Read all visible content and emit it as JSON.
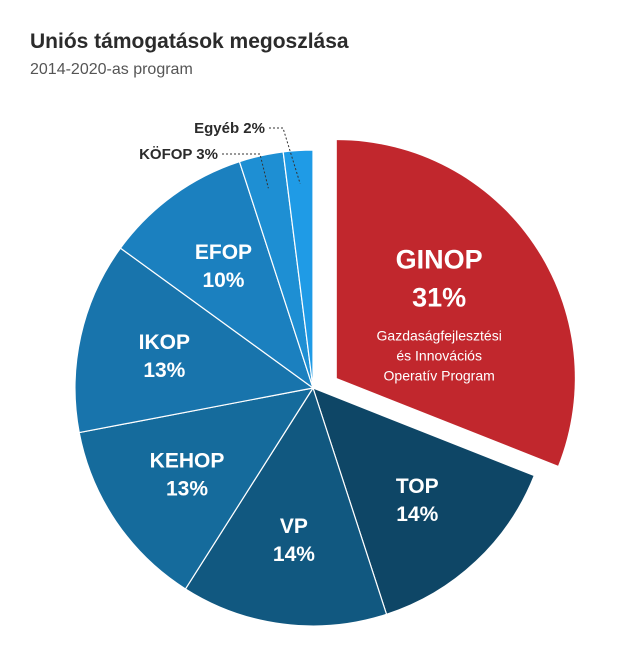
{
  "title": "Uniós támogatások megoszlása",
  "subtitle": "2014-2020-as program",
  "chart_data": {
    "type": "pie",
    "title": "Uniós támogatások megoszlása",
    "subtitle": "2014-2020-as program",
    "unit": "%",
    "slices": [
      {
        "name": "GINOP",
        "value": 31,
        "label": "31%",
        "description": [
          "Gazdaságfejlesztési",
          "és Innovációs",
          "Operatív Program"
        ],
        "color": "#c1272d",
        "exploded": true
      },
      {
        "name": "TOP",
        "value": 14,
        "label": "14%",
        "color": "#0e4666"
      },
      {
        "name": "VP",
        "value": 14,
        "label": "14%",
        "color": "#115880"
      },
      {
        "name": "KEHOP",
        "value": 13,
        "label": "13%",
        "color": "#156b9c"
      },
      {
        "name": "IKOP",
        "value": 13,
        "label": "13%",
        "color": "#1874ac"
      },
      {
        "name": "EFOP",
        "value": 10,
        "label": "10%",
        "color": "#1b80bf"
      },
      {
        "name": "KÖFOP",
        "value": 3,
        "label": "3%",
        "color": "#1e8fd3",
        "outside_label": "KÖFOP  3%"
      },
      {
        "name": "Egyéb",
        "value": 2,
        "label": "2%",
        "color": "#1f9be6",
        "outside_label": "Egyéb 2%"
      }
    ]
  }
}
